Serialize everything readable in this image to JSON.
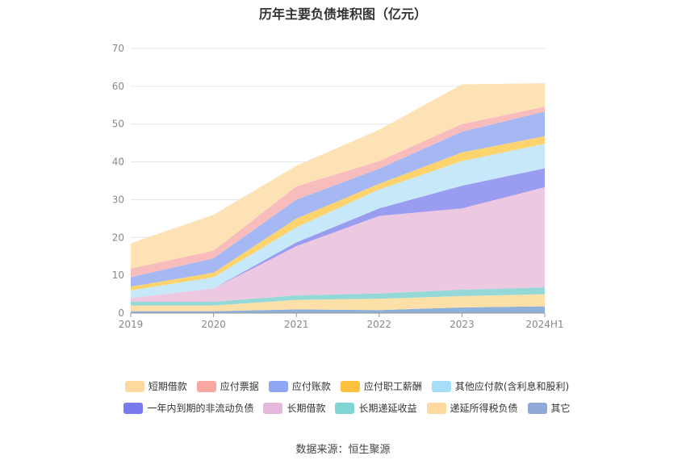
{
  "chart_data": {
    "type": "area",
    "stacked": true,
    "title": "历年主要负债堆积图（亿元）",
    "categories": [
      "2019",
      "2020",
      "2021",
      "2022",
      "2023",
      "2024H1"
    ],
    "ylim": [
      0,
      70
    ],
    "yticks": [
      0,
      10,
      20,
      30,
      40,
      50,
      60,
      70
    ],
    "grid": true,
    "legend_position": "bottom",
    "series": [
      {
        "name": "其它",
        "color": "#8fb0d8",
        "values": [
          0.5,
          0.5,
          1.0,
          0.8,
          1.5,
          1.8
        ]
      },
      {
        "name": "递延所得税负债",
        "color": "#fde0a8",
        "values": [
          1.5,
          1.5,
          2.5,
          3.0,
          3.0,
          3.2
        ]
      },
      {
        "name": "长期递延收益",
        "color": "#95d8d8",
        "values": [
          1.0,
          1.0,
          1.2,
          1.4,
          1.7,
          1.8
        ]
      },
      {
        "name": "长期借款",
        "color": "#ecc9e0",
        "values": [
          1.0,
          3.5,
          13.0,
          20.5,
          21.5,
          26.5
        ]
      },
      {
        "name": "一年内到期的非流动负债",
        "color": "#9a9cf0",
        "values": [
          0.0,
          0.0,
          1.0,
          2.0,
          6.0,
          5.0
        ]
      },
      {
        "name": "其他应付款(含利息和股利)",
        "color": "#c6e8f8",
        "values": [
          2.0,
          3.0,
          4.0,
          5.0,
          6.5,
          6.5
        ]
      },
      {
        "name": "应付职工薪酬",
        "color": "#fdd36d",
        "values": [
          1.0,
          1.2,
          2.3,
          1.5,
          2.3,
          2.0
        ]
      },
      {
        "name": "应付账款",
        "color": "#a6b8f4",
        "values": [
          2.5,
          3.8,
          5.0,
          4.0,
          5.5,
          6.5
        ]
      },
      {
        "name": "应付票据",
        "color": "#f9bcbc",
        "values": [
          2.3,
          2.0,
          3.5,
          2.0,
          2.0,
          1.3
        ]
      },
      {
        "name": "短期借款",
        "color": "#fde2b6",
        "values": [
          6.7,
          9.5,
          5.5,
          8.3,
          10.5,
          6.2
        ]
      }
    ]
  },
  "legend": {
    "row1": [
      {
        "label": "短期借款",
        "color": "#fdd9a0"
      },
      {
        "label": "应付票据",
        "color": "#f8a8a0"
      },
      {
        "label": "应付账款",
        "color": "#8fa6f4"
      },
      {
        "label": "应付职工薪酬",
        "color": "#fbc03c"
      },
      {
        "label": "其他应付款(含利息和股利)",
        "color": "#a6def8"
      }
    ],
    "row2": [
      {
        "label": "一年内到期的非流动负债",
        "color": "#7a7af0"
      },
      {
        "label": "长期借款",
        "color": "#e6b8dc"
      },
      {
        "label": "长期递延收益",
        "color": "#80d4d4"
      },
      {
        "label": "递延所得税负债",
        "color": "#fdd9a0"
      },
      {
        "label": "其它",
        "color": "#8fa8d8"
      }
    ]
  },
  "source": "数据来源：恒生聚源"
}
